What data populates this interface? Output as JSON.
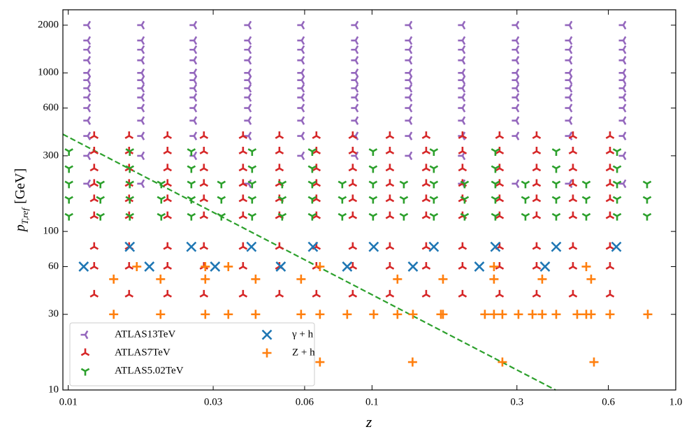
{
  "chart_data": {
    "type": "scatter",
    "xlabel": "z",
    "ylabel": {
      "symbol": "p",
      "subscript": "T,ref",
      "unit": "[GeV]"
    },
    "xscale": "log",
    "yscale": "log",
    "xlim": [
      0.0096,
      1.0
    ],
    "ylim": [
      10,
      2500
    ],
    "xticks": [
      0.01,
      0.03,
      0.06,
      0.1,
      0.3,
      0.6,
      {
        "value": 1,
        "label": "1.0"
      }
    ],
    "yticks": [
      10,
      30,
      60,
      100,
      300,
      600,
      1000,
      2000
    ],
    "grid": false,
    "legend": "lower left",
    "legend_columns": 2,
    "series": [
      {
        "name": "ATLAS13TeV",
        "color": "#9467bd",
        "marker": "tri_left",
        "x": [
          0.0116,
          0.0116,
          0.0116,
          0.0116,
          0.0116,
          0.0116,
          0.0116,
          0.0116,
          0.0116,
          0.0116,
          0.0116,
          0.0116,
          0.0116,
          0.01745,
          0.01745,
          0.01745,
          0.01745,
          0.01745,
          0.01745,
          0.01745,
          0.01745,
          0.01745,
          0.01745,
          0.01745,
          0.01745,
          0.01745,
          0.02596,
          0.02596,
          0.02596,
          0.02596,
          0.02596,
          0.02596,
          0.02596,
          0.02596,
          0.02596,
          0.02596,
          0.02596,
          0.02596,
          0.03925,
          0.03925,
          0.03925,
          0.03925,
          0.03925,
          0.03925,
          0.03925,
          0.03925,
          0.03925,
          0.03925,
          0.03925,
          0.03925,
          0.05871,
          0.05871,
          0.05871,
          0.05871,
          0.05871,
          0.05871,
          0.05871,
          0.05871,
          0.05871,
          0.05871,
          0.05871,
          0.05871,
          0.0883,
          0.0883,
          0.0883,
          0.0883,
          0.0883,
          0.0883,
          0.0883,
          0.0883,
          0.0883,
          0.0883,
          0.0883,
          0.0883,
          0.1328,
          0.1328,
          0.1328,
          0.1328,
          0.1328,
          0.1328,
          0.1328,
          0.1328,
          0.1328,
          0.1328,
          0.1328,
          0.1328,
          0.1986,
          0.1986,
          0.1986,
          0.1986,
          0.1986,
          0.1986,
          0.1986,
          0.1986,
          0.1986,
          0.1986,
          0.1986,
          0.1986,
          0.1986,
          0.2987,
          0.2987,
          0.2987,
          0.2987,
          0.2987,
          0.2987,
          0.2987,
          0.2987,
          0.2987,
          0.2987,
          0.2987,
          0.2987,
          0.4469,
          0.4469,
          0.4469,
          0.4469,
          0.4469,
          0.4469,
          0.4469,
          0.4469,
          0.4469,
          0.4469,
          0.4469,
          0.4469,
          0.6722,
          0.6722,
          0.6722,
          0.6722,
          0.6722,
          0.6722,
          0.6722,
          0.6722,
          0.6722,
          0.6722,
          0.6722,
          0.6722,
          0.6722
        ],
        "values": [
          2000,
          1600,
          1400,
          1200,
          1000,
          900,
          800,
          700,
          600,
          500,
          400,
          300,
          200,
          2000,
          1600,
          1400,
          1200,
          1000,
          900,
          800,
          700,
          600,
          500,
          400,
          300,
          200,
          2000,
          1600,
          1400,
          1200,
          1000,
          900,
          800,
          700,
          600,
          500,
          400,
          300,
          2000,
          1600,
          1400,
          1200,
          1000,
          900,
          800,
          700,
          600,
          500,
          400,
          200,
          2000,
          1600,
          1400,
          1200,
          1000,
          900,
          800,
          700,
          600,
          500,
          400,
          300,
          2000,
          1600,
          1400,
          1200,
          1000,
          900,
          800,
          700,
          600,
          500,
          400,
          300,
          2000,
          1600,
          1400,
          1200,
          1000,
          900,
          800,
          700,
          600,
          500,
          400,
          300,
          2000,
          1600,
          1400,
          1200,
          1000,
          900,
          800,
          700,
          600,
          500,
          400,
          300,
          200,
          2000,
          1600,
          1400,
          1200,
          1000,
          900,
          800,
          700,
          600,
          500,
          400,
          200,
          2000,
          1600,
          1400,
          1200,
          1000,
          900,
          800,
          700,
          600,
          500,
          400,
          200,
          2000,
          1600,
          1400,
          1200,
          1000,
          900,
          800,
          700,
          600,
          500,
          400,
          300,
          200
        ]
      },
      {
        "name": "ATLAS7TeV",
        "color": "#d62728",
        "marker": "tri_up",
        "x": [
          0.01217,
          0.01217,
          0.01217,
          0.01217,
          0.01217,
          0.01217,
          0.01217,
          0.01217,
          0.01217,
          0.01586,
          0.01586,
          0.01586,
          0.01586,
          0.01586,
          0.01586,
          0.01586,
          0.01586,
          0.01586,
          0.02122,
          0.02122,
          0.02122,
          0.02122,
          0.02122,
          0.02122,
          0.02122,
          0.02122,
          0.02122,
          0.02796,
          0.02796,
          0.02796,
          0.02796,
          0.02796,
          0.02796,
          0.02796,
          0.02796,
          0.02796,
          0.03762,
          0.03762,
          0.03762,
          0.03762,
          0.03762,
          0.03762,
          0.03762,
          0.03762,
          0.03762,
          0.04956,
          0.04956,
          0.04956,
          0.04956,
          0.04956,
          0.04956,
          0.04956,
          0.04956,
          0.04956,
          0.06561,
          0.06561,
          0.06561,
          0.06561,
          0.06561,
          0.06561,
          0.06561,
          0.06561,
          0.06561,
          0.08643,
          0.08643,
          0.08643,
          0.08643,
          0.08643,
          0.08643,
          0.08643,
          0.08643,
          0.08643,
          0.1145,
          0.1145,
          0.1145,
          0.1145,
          0.1145,
          0.1145,
          0.1145,
          0.1145,
          0.1145,
          0.1508,
          0.1508,
          0.1508,
          0.1508,
          0.1508,
          0.1508,
          0.1508,
          0.1508,
          0.1508,
          0.1986,
          0.1986,
          0.1986,
          0.1986,
          0.1986,
          0.1986,
          0.1986,
          0.1986,
          0.1986,
          0.263,
          0.263,
          0.263,
          0.263,
          0.263,
          0.263,
          0.263,
          0.263,
          0.263,
          0.3483,
          0.3483,
          0.3483,
          0.3483,
          0.3483,
          0.3483,
          0.3483,
          0.3483,
          0.3483,
          0.4588,
          0.4588,
          0.4588,
          0.4588,
          0.4588,
          0.4588,
          0.4588,
          0.4588,
          0.4588,
          0.6076,
          0.6076,
          0.6076,
          0.6076,
          0.6076,
          0.6076,
          0.6076,
          0.6076,
          0.6076
        ],
        "values": [
          400,
          320,
          250,
          200,
          160,
          125,
          80,
          60,
          40,
          400,
          320,
          250,
          200,
          160,
          125,
          80,
          60,
          40,
          400,
          320,
          250,
          200,
          160,
          125,
          80,
          60,
          40,
          400,
          320,
          250,
          200,
          160,
          125,
          80,
          60,
          40,
          400,
          320,
          250,
          200,
          160,
          125,
          80,
          60,
          40,
          400,
          320,
          250,
          200,
          160,
          125,
          80,
          60,
          40,
          400,
          320,
          250,
          200,
          160,
          125,
          80,
          60,
          40,
          400,
          320,
          250,
          200,
          160,
          125,
          80,
          60,
          40,
          400,
          320,
          250,
          200,
          160,
          125,
          80,
          60,
          40,
          400,
          320,
          250,
          200,
          160,
          125,
          80,
          60,
          40,
          400,
          320,
          250,
          200,
          160,
          125,
          80,
          60,
          40,
          400,
          320,
          250,
          200,
          160,
          125,
          80,
          60,
          40,
          400,
          320,
          250,
          200,
          160,
          125,
          80,
          60,
          40,
          400,
          320,
          250,
          200,
          160,
          125,
          80,
          60,
          40,
          400,
          320,
          250,
          200,
          160,
          125,
          80,
          60,
          40
        ]
      },
      {
        "name": "ATLAS5.02TeV",
        "color": "#2ca02c",
        "marker": "tri_down",
        "x": [
          0.01005,
          0.01005,
          0.01005,
          0.01005,
          0.01005,
          0.01276,
          0.01276,
          0.01276,
          0.01594,
          0.01594,
          0.01594,
          0.01594,
          0.01594,
          0.02024,
          0.02024,
          0.02024,
          0.02542,
          0.02542,
          0.02542,
          0.02542,
          0.02542,
          0.03192,
          0.03192,
          0.03192,
          0.0403,
          0.0403,
          0.0403,
          0.0403,
          0.0403,
          0.05062,
          0.05062,
          0.05062,
          0.06357,
          0.06357,
          0.06357,
          0.06357,
          0.06357,
          0.07983,
          0.07983,
          0.07983,
          0.1008,
          0.1008,
          0.1008,
          0.1008,
          0.1008,
          0.1273,
          0.1273,
          0.1273,
          0.1598,
          0.1598,
          0.1598,
          0.1598,
          0.1598,
          0.2018,
          0.2018,
          0.2018,
          0.2548,
          0.2548,
          0.2548,
          0.2548,
          0.2548,
          0.32,
          0.32,
          0.32,
          0.4041,
          0.4041,
          0.4041,
          0.4041,
          0.4041,
          0.5075,
          0.5075,
          0.5075,
          0.6411,
          0.6411,
          0.6411,
          0.6411,
          0.6411,
          0.8048,
          0.8048,
          0.8048
        ],
        "values": [
          320,
          250,
          200,
          160,
          125,
          200,
          160,
          125,
          320,
          250,
          200,
          160,
          125,
          200,
          160,
          125,
          320,
          250,
          200,
          160,
          125,
          200,
          160,
          125,
          320,
          250,
          200,
          160,
          125,
          200,
          160,
          125,
          320,
          250,
          200,
          160,
          125,
          200,
          160,
          125,
          320,
          250,
          200,
          160,
          125,
          200,
          160,
          125,
          320,
          250,
          200,
          160,
          125,
          200,
          160,
          125,
          320,
          250,
          200,
          160,
          125,
          200,
          160,
          125,
          320,
          250,
          200,
          160,
          125,
          200,
          160,
          125,
          320,
          250,
          200,
          160,
          125,
          200,
          160,
          125
        ]
      },
      {
        "name": "γ + h",
        "color": "#1f77b4",
        "marker": "x",
        "x": [
          0.01124,
          0.01594,
          0.01849,
          0.02542,
          0.03043,
          0.04009,
          0.05008,
          0.06393,
          0.08285,
          0.1013,
          0.1364,
          0.1598,
          0.2256,
          0.2548,
          0.3712,
          0.4041,
          0.6376
        ],
        "values": [
          60,
          80,
          60,
          80,
          60,
          80,
          60,
          80,
          60,
          80,
          60,
          80,
          60,
          80,
          60,
          80,
          80
        ]
      },
      {
        "name": "Z + h",
        "color": "#ff7f0e",
        "marker": "plus",
        "x": [
          0.01411,
          0.02013,
          0.02826,
          0.03365,
          0.04139,
          0.05841,
          0.06739,
          0.08285,
          0.1013,
          0.1213,
          0.1364,
          0.1686,
          0.1713,
          0.2353,
          0.2521,
          0.2687,
          0.3035,
          0.3375,
          0.3634,
          0.4041,
          0.4737,
          0.5075,
          0.5266,
          0.6076,
          0.809,
          0.01411,
          0.02013,
          0.02826,
          0.04139,
          0.05841,
          0.1213,
          0.1713,
          0.2521,
          0.3634,
          0.5266,
          0.01681,
          0.02826,
          0.03365,
          0.06739,
          0.2521,
          0.5075,
          0.06739,
          0.136,
          0.2687,
          0.538
        ],
        "values": [
          30,
          30,
          30,
          30,
          30,
          30,
          30,
          30,
          30,
          30,
          30,
          30,
          30,
          30,
          30,
          30,
          30,
          30,
          30,
          30,
          30,
          30,
          30,
          30,
          30,
          50,
          50,
          50,
          50,
          50,
          50,
          50,
          50,
          50,
          50,
          60,
          60,
          60,
          60,
          60,
          60,
          15,
          15,
          15,
          15
        ]
      }
    ],
    "lines": [
      {
        "color": "#2ca02c",
        "style": "dashed",
        "x": [
          0.0096,
          0.402
        ],
        "values": [
          410,
          10
        ]
      }
    ]
  }
}
